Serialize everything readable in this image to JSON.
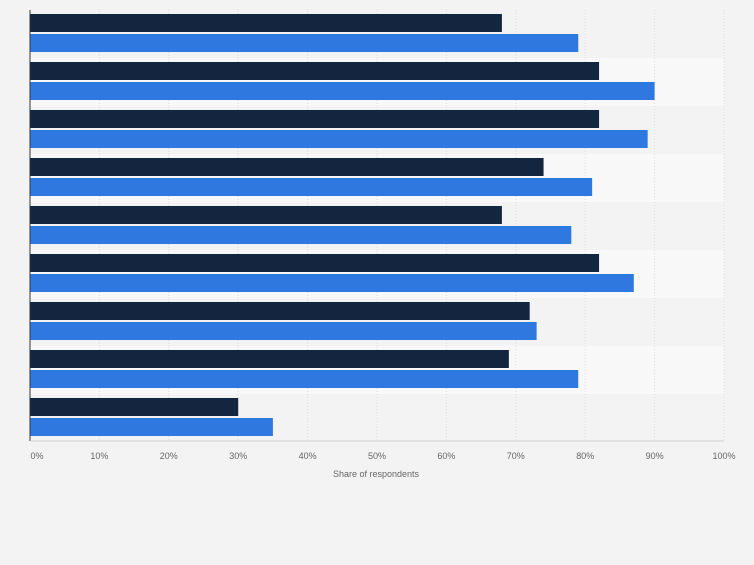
{
  "chart_data": {
    "type": "bar",
    "orientation": "horizontal",
    "categories": [
      "",
      "",
      "",
      "",
      "",
      "",
      "",
      "",
      ""
    ],
    "series": [
      {
        "color": "#14263f",
        "values": [
          68,
          82,
          82,
          74,
          68,
          82,
          72,
          69,
          30
        ]
      },
      {
        "color": "#2f78e0",
        "values": [
          79,
          90,
          89,
          81,
          78,
          87,
          73,
          79,
          35
        ]
      }
    ],
    "xlim": [
      0,
      100
    ],
    "xticks": [
      "0%",
      "10%",
      "20%",
      "30%",
      "40%",
      "50%",
      "60%",
      "70%",
      "80%",
      "90%",
      "100%"
    ],
    "xlabel": "Share of respondents",
    "ylabel": "",
    "title": "",
    "grid": true,
    "legend": "none",
    "band_colors": [
      "#f3f3f3",
      "#f8f8f8"
    ],
    "grid_color": "#dcdcdc",
    "axis_color": "#333333"
  }
}
